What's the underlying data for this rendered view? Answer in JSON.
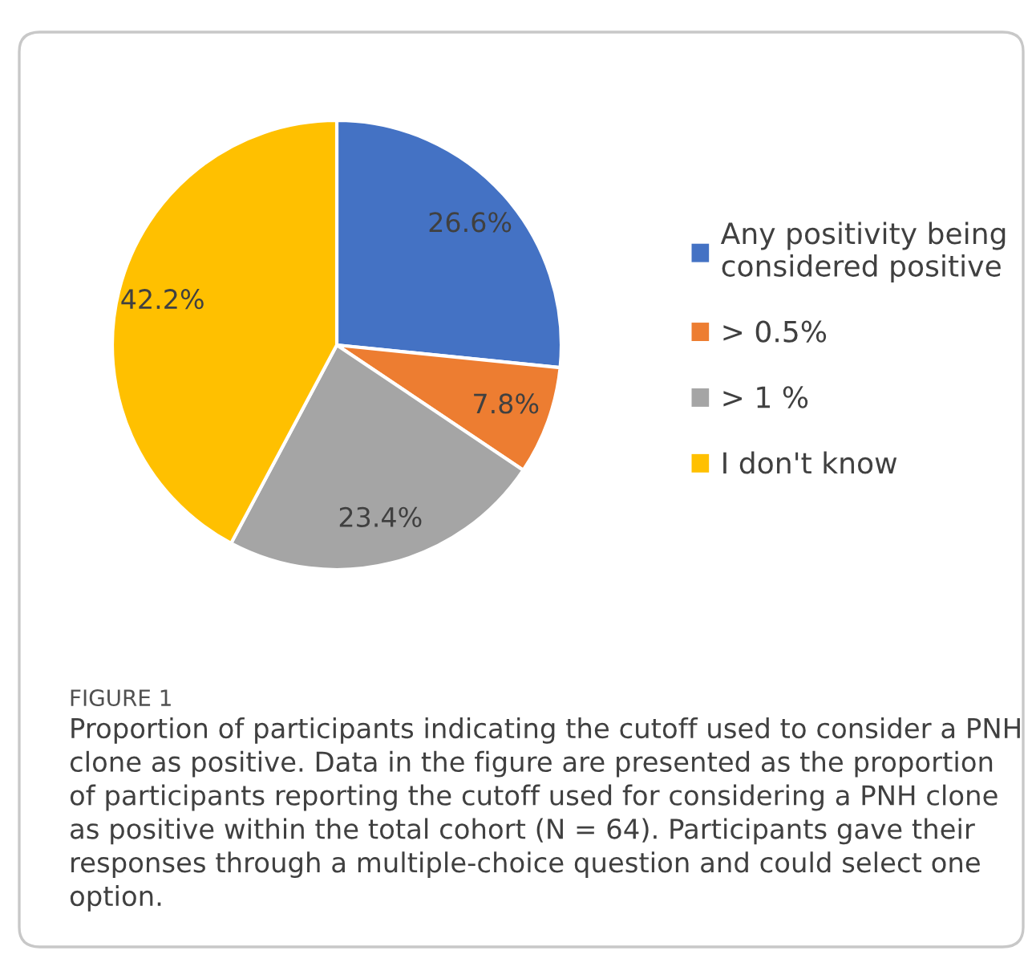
{
  "chart_data": {
    "type": "pie",
    "categories": [
      "Any positivity being\nconsidered positive",
      "> 0.5%",
      "> 1 %",
      "I don't know"
    ],
    "values": [
      26.6,
      7.8,
      23.4,
      42.2
    ],
    "colors": [
      "#4472c4",
      "#ed7d31",
      "#a5a5a5",
      "#ffc000"
    ],
    "value_labels": [
      "26.6%",
      "7.8%",
      "23.4%",
      "42.2%"
    ],
    "legend": "right",
    "annotations": [
      "FIGURE 1",
      "Proportion of participants indicating the cutoff used to consider a PNH clone as positive. Data in the figure are presented as the proportion of participants reporting the cutoff used for considering a PNH clone as positive within the total cohort (N = 64). Participants gave their responses through a multiple-choice question and could select one option."
    ]
  }
}
